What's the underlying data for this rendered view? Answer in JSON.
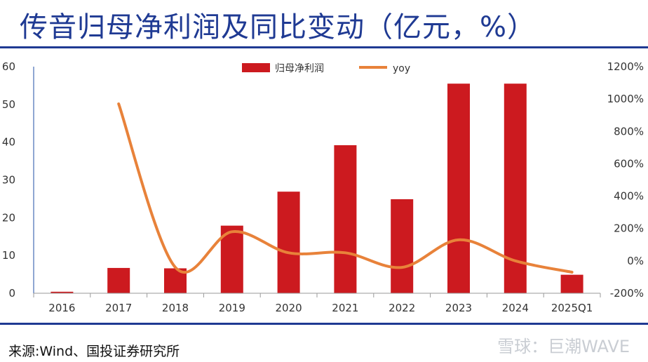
{
  "title": "传音归母净利润及同比变动（亿元，%）",
  "source": "来源:Wind、国投证券研究所",
  "watermark": "雪球：巨潮WAVE",
  "colors": {
    "bar": "#cc1a1f",
    "line": "#e8823a",
    "title": "#1f3a93"
  },
  "chart_data": {
    "type": "bar",
    "categories": [
      "2016",
      "2017",
      "2018",
      "2019",
      "2020",
      "2021",
      "2022",
      "2023",
      "2024",
      "2025Q1"
    ],
    "series": [
      {
        "name": "归母净利润",
        "type": "bar",
        "axis": "left",
        "values": [
          0.4,
          6.7,
          6.6,
          17.9,
          26.9,
          39.2,
          24.9,
          55.5,
          55.5,
          4.9
        ]
      },
      {
        "name": "yoy",
        "type": "line",
        "axis": "right",
        "smooth": true,
        "values": [
          null,
          970,
          -40,
          180,
          50,
          50,
          -40,
          130,
          0,
          -70
        ]
      }
    ],
    "ylim_left": [
      0,
      60
    ],
    "yticks_left": [
      0,
      10,
      20,
      30,
      40,
      50,
      60
    ],
    "ylim_right": [
      -200,
      1200
    ],
    "yticks_right": [
      "-200%",
      "0%",
      "200%",
      "400%",
      "600%",
      "800%",
      "1000%",
      "1200%"
    ],
    "grid": false,
    "legend_position": "top-center"
  }
}
